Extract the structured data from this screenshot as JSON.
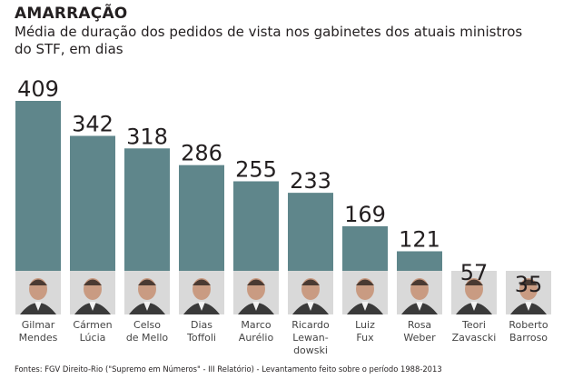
{
  "title": "AMARRAÇÃO",
  "subtitle_lines": [
    "Média de duração dos pedidos de vista nos gabinetes dos atuais ministros",
    "do STF, em dias"
  ],
  "source": "Fontes: FGV Direito-Rio (\"Supremo em Números\" - III Relatório) - Levantamento feito sobre o período 1988-2013",
  "colors": {
    "bar": "#5f868b",
    "text": "#231f20",
    "photo_bg": "#d9d9d9"
  },
  "chart_data": {
    "type": "bar",
    "categories": [
      [
        "Gilmar",
        "Mendes"
      ],
      [
        "Cármen",
        "Lúcia"
      ],
      [
        "Celso",
        "de Mello"
      ],
      [
        "Dias",
        "Toffoli"
      ],
      [
        "Marco",
        "Aurélio"
      ],
      [
        "Ricardo",
        "Lewan-",
        "dowski"
      ],
      [
        "Luiz",
        "Fux"
      ],
      [
        "Rosa",
        "Weber"
      ],
      [
        "Teori",
        "Zavascki"
      ],
      [
        "Roberto",
        "Barroso"
      ]
    ],
    "values": [
      409,
      342,
      318,
      286,
      255,
      233,
      169,
      121,
      57,
      35
    ],
    "ylim": [
      0,
      409
    ],
    "grid": false,
    "legend": "none",
    "data_labels": true
  }
}
